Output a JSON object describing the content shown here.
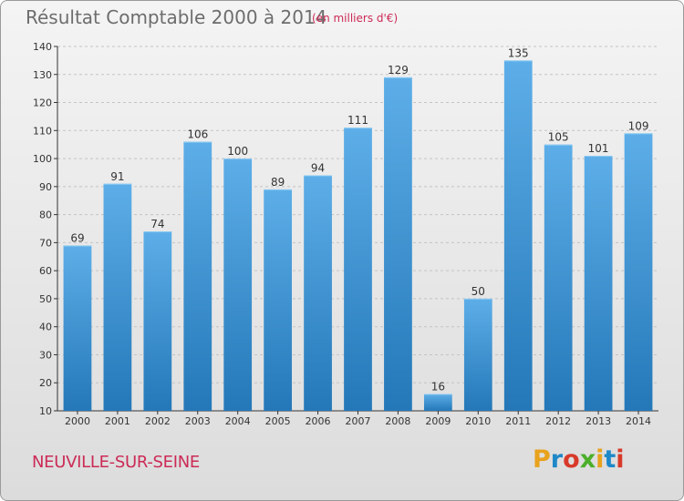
{
  "header": {
    "title": "Résultat Comptable 2000 à 2014",
    "subtitle": "(en milliers d'€)"
  },
  "footer": {
    "commune": "NEUVILLE-SUR-SEINE",
    "logo": [
      "P",
      "r",
      "o",
      "x",
      "i",
      "t",
      "i"
    ]
  },
  "colors": {
    "bar_top": "#5daee8",
    "bar_bottom": "#2478b8",
    "title": "#6d6d6d",
    "accent": "#cc2b56",
    "logo": [
      "#e8a21d",
      "#1e88c8",
      "#d83a2a",
      "#4caf2a",
      "#e8a21d",
      "#1e88c8",
      "#d83a2a"
    ]
  },
  "chart_data": {
    "type": "bar",
    "title": "Résultat Comptable 2000 à 2014",
    "subtitle": "(en milliers d'€)",
    "categories": [
      "2000",
      "2001",
      "2002",
      "2003",
      "2004",
      "2005",
      "2006",
      "2007",
      "2008",
      "2009",
      "2010",
      "2011",
      "2012",
      "2013",
      "2014"
    ],
    "values": [
      69,
      91,
      74,
      106,
      100,
      89,
      94,
      111,
      129,
      16,
      50,
      135,
      105,
      101,
      109
    ],
    "ylim": [
      10,
      140
    ],
    "yticks": [
      10,
      20,
      30,
      40,
      50,
      60,
      70,
      80,
      90,
      100,
      110,
      120,
      130,
      140
    ],
    "grid": true,
    "legend": "none"
  }
}
